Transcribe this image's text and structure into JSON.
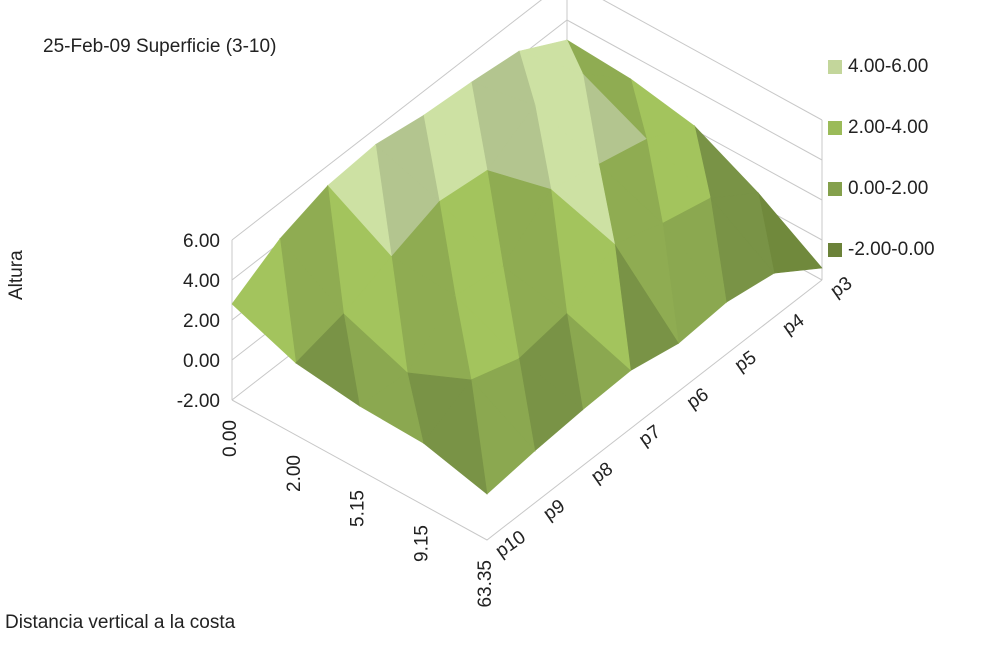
{
  "chart_data": {
    "type": "surface",
    "title": "25-Feb-09 Superficie (3-10)",
    "zlabel": "Altura",
    "xlabel": "Distancia vertical a la costa",
    "z_ticks": [
      "6.00",
      "4.00",
      "2.00",
      "0.00",
      "-2.00"
    ],
    "zlim": [
      -2,
      6
    ],
    "x_categories": [
      "0.00",
      "2.00",
      "5.15",
      "9.15",
      "63.35"
    ],
    "y_categories": [
      "p3",
      "p4",
      "p5",
      "p6",
      "p7",
      "p8",
      "p9",
      "p10"
    ],
    "legend": {
      "position": "right",
      "entries": [
        {
          "label": "4.00-6.00",
          "color": "#c3d69b"
        },
        {
          "label": "2.00-4.00",
          "color": "#9bbb59"
        },
        {
          "label": "0.00-2.00",
          "color": "#84a04c"
        },
        {
          "label": "-2.00-0.00",
          "color": "#6b8239"
        }
      ]
    },
    "grid": true
  },
  "colors": {
    "band_4_6": "#c3d69b",
    "band_2_4": "#9bbb59",
    "band_0_2": "#84a04c",
    "band_neg2_0": "#6b8239",
    "highlight": "#dff59a",
    "grid": "#c8c8c8"
  }
}
